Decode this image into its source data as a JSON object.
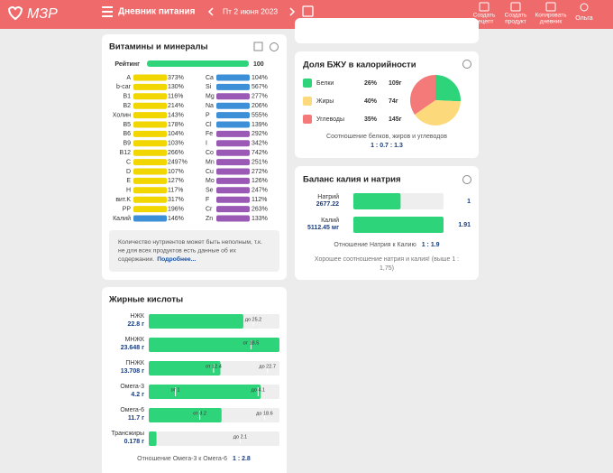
{
  "header": {
    "logo": "МЗР",
    "menu": "Дневник питания",
    "date": "Пт 2 июня 2023",
    "actions": [
      [
        "Создать",
        "рецепт"
      ],
      [
        "Создать",
        "продукт"
      ],
      [
        "Копировать",
        "дневник"
      ]
    ],
    "user": "Ольга"
  },
  "vitamins": {
    "title": "Витамины и минералы",
    "rating": {
      "label": "Рейтинг",
      "value": 100,
      "xlim": [
        0,
        100
      ],
      "color": "#2ed47a"
    },
    "left": [
      {
        "name": "A",
        "value": "373%",
        "color": "#f2d600"
      },
      {
        "name": "b-car",
        "value": "130%",
        "color": "#f2d600"
      },
      {
        "name": "B1",
        "value": "116%",
        "color": "#f2d600"
      },
      {
        "name": "B2",
        "value": "214%",
        "color": "#f2d600"
      },
      {
        "name": "Холин",
        "value": "143%",
        "color": "#f2d600"
      },
      {
        "name": "B5",
        "value": "178%",
        "color": "#f2d600"
      },
      {
        "name": "B6",
        "value": "104%",
        "color": "#f2d600"
      },
      {
        "name": "B9",
        "value": "103%",
        "color": "#f2d600"
      },
      {
        "name": "B12",
        "value": "266%",
        "color": "#f2d600"
      },
      {
        "name": "C",
        "value": "2497%",
        "color": "#f2d600"
      },
      {
        "name": "D",
        "value": "107%",
        "color": "#f2d600"
      },
      {
        "name": "E",
        "value": "127%",
        "color": "#f2d600"
      },
      {
        "name": "H",
        "value": "117%",
        "color": "#f2d600"
      },
      {
        "name": "вит.K",
        "value": "317%",
        "color": "#f2d600"
      },
      {
        "name": "PP",
        "value": "196%",
        "color": "#f2d600"
      },
      {
        "name": "Калий",
        "value": "146%",
        "color": "#3d8fd8"
      }
    ],
    "right": [
      {
        "name": "Ca",
        "value": "104%",
        "color": "#3d8fd8"
      },
      {
        "name": "Si",
        "value": "567%",
        "color": "#3d8fd8"
      },
      {
        "name": "Mg",
        "value": "277%",
        "color": "#9b59b6"
      },
      {
        "name": "Na",
        "value": "206%",
        "color": "#3d8fd8"
      },
      {
        "name": "P",
        "value": "555%",
        "color": "#3d8fd8"
      },
      {
        "name": "Cl",
        "value": "139%",
        "color": "#3d8fd8"
      },
      {
        "name": "Fe",
        "value": "292%",
        "color": "#9b59b6"
      },
      {
        "name": "I",
        "value": "342%",
        "color": "#9b59b6"
      },
      {
        "name": "Co",
        "value": "742%",
        "color": "#9b59b6"
      },
      {
        "name": "Mn",
        "value": "251%",
        "color": "#9b59b6"
      },
      {
        "name": "Cu",
        "value": "272%",
        "color": "#9b59b6"
      },
      {
        "name": "Mo",
        "value": "126%",
        "color": "#9b59b6"
      },
      {
        "name": "Se",
        "value": "247%",
        "color": "#9b59b6"
      },
      {
        "name": "F",
        "value": "112%",
        "color": "#9b59b6"
      },
      {
        "name": "Cr",
        "value": "263%",
        "color": "#9b59b6"
      },
      {
        "name": "Zn",
        "value": "133%",
        "color": "#9b59b6"
      }
    ],
    "note": [
      "Количество нутриентов может быть неполным, т.к.",
      "не для всех продуктов есть данные об их"
    ],
    "note_last": "содержании.",
    "note_link": "Подробнее..."
  },
  "fatty_acids": {
    "title": "Жирные кислоты",
    "unit": "г",
    "color": "#2ed47a",
    "rows": [
      {
        "name": "НЖК",
        "value": 22.8,
        "xlim": [
          0,
          31.5
        ],
        "limits": [
          {
            "value": 25.2,
            "label": "до 25.2"
          }
        ]
      },
      {
        "name": "МНЖК",
        "value": 23.648,
        "xlim": [
          0,
          23.648
        ],
        "limits": [
          {
            "value": 18.5,
            "label": "от 18.5"
          }
        ]
      },
      {
        "name": "ПНЖК",
        "value": 13.708,
        "xlim": [
          0,
          25
        ],
        "limits": [
          {
            "value": 12.4,
            "label": "от 12.4"
          },
          {
            "value": 22.7,
            "label": "до 22.7"
          }
        ]
      },
      {
        "name": "Омега-3",
        "value": 4.2,
        "xlim": [
          0,
          4.9
        ],
        "limits": [
          {
            "value": 1,
            "label": "от 1"
          },
          {
            "value": 4.1,
            "label": "до 4.1"
          }
        ]
      },
      {
        "name": "Омега-6",
        "value": 11.7,
        "xlim": [
          0,
          21
        ],
        "limits": [
          {
            "value": 8.2,
            "label": "от 8.2"
          },
          {
            "value": 18.6,
            "label": "до 18.6"
          }
        ]
      },
      {
        "name": "Трансжиры",
        "value": 0.178,
        "xlim": [
          0,
          3
        ],
        "limits": [
          {
            "value": 2.1,
            "label": "до 2.1"
          }
        ]
      }
    ],
    "ratio_label": "Отношение Омега-3 к Омега-6",
    "ratio": "1 : 2.8"
  },
  "macros": {
    "title": "Доля БЖУ в калорийности",
    "type": "pie",
    "items": [
      {
        "name": "Белки",
        "color": "#2ed47a",
        "value": 26,
        "value_label": "26%",
        "grams": "109г"
      },
      {
        "name": "Жиры",
        "color": "#fcd97a",
        "value": 40,
        "value_label": "40%",
        "grams": "74г"
      },
      {
        "name": "Углеводы",
        "color": "#f47a7a",
        "value": 35,
        "value_label": "35%",
        "grams": "145г"
      }
    ],
    "caption": "Соотношение белков, жиров и углеводов",
    "ratio": "1 : 0.7 : 1.3"
  },
  "balance": {
    "title": "Баланс калия и натрия",
    "xlim": [
      0,
      5112.45
    ],
    "color": "#2ed47a",
    "rows": [
      {
        "name": "Натрий",
        "value": 2677.22,
        "value_label": "2677.22",
        "ratio": "1"
      },
      {
        "name": "Калий",
        "value": 5112.45,
        "value_label": "5112.45 мг",
        "ratio": "1.91"
      }
    ],
    "ratio_label": "Отношение Натрия к Калию",
    "ratio": "1 : 1.9",
    "message": [
      "Хорошее соотношение натрия и калия! (выше 1 :",
      "1,75)"
    ]
  }
}
